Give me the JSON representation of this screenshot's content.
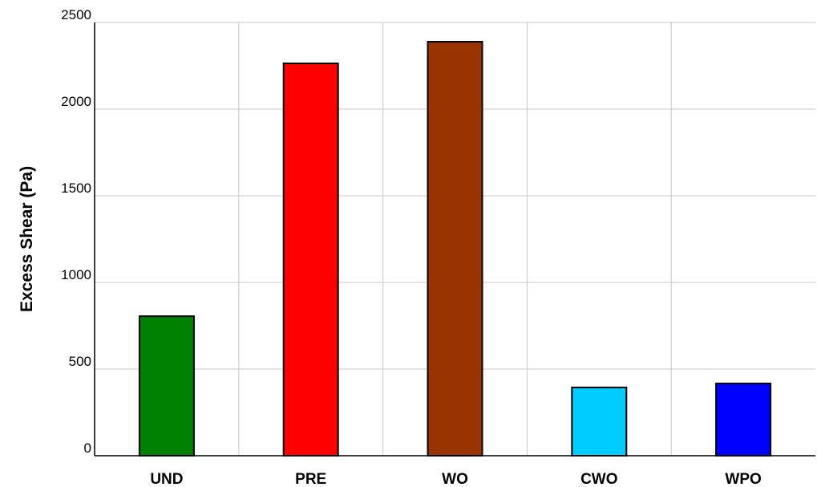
{
  "chart_data": {
    "type": "bar",
    "ylabel": "Excess Shear (Pa)",
    "categories": [
      "UND",
      "PRE",
      "WO",
      "CWO",
      "WPO"
    ],
    "values": [
      805,
      2264,
      2389,
      394,
      417
    ],
    "colors": [
      "#008000",
      "#ff0000",
      "#993300",
      "#00ccff",
      "#0000ff"
    ],
    "ylim": [
      0,
      2500
    ],
    "yticks": [
      0,
      500,
      1000,
      1500,
      2000,
      2500
    ],
    "grid": true
  }
}
